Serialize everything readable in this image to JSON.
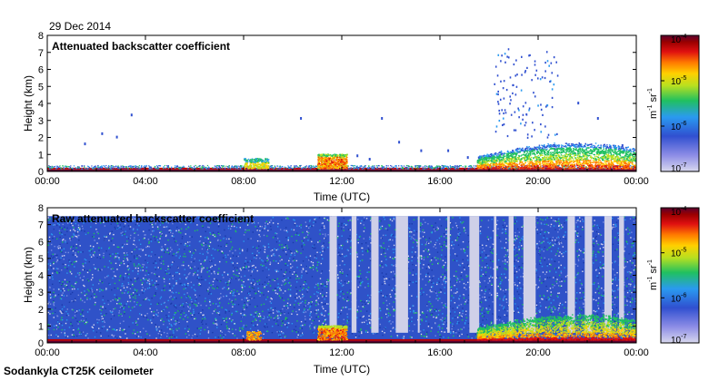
{
  "date": "29 Dec 2014",
  "instrument": "Sodankyla CT25K ceilometer",
  "colors": {
    "colormap": [
      "#d8d8ee",
      "#3050d0",
      "#2a9af0",
      "#20c060",
      "#b8e020",
      "#ffd000",
      "#ff7a00",
      "#e01010",
      "#9b0000",
      "#5a0030"
    ],
    "frame": "#000000",
    "background": "#ffffff"
  },
  "chart_data": [
    {
      "type": "heatmap",
      "title": "Attenuated backscatter coefficient",
      "xlabel": "Time (UTC)",
      "ylabel": "Height (km)",
      "xlim": [
        "00:00",
        "00:00"
      ],
      "ylim": [
        0,
        8
      ],
      "x_ticks": [
        "00:00",
        "04:00",
        "08:00",
        "12:00",
        "16:00",
        "20:00",
        "00:00"
      ],
      "y_ticks": [
        "0",
        "1",
        "2",
        "3",
        "4",
        "5",
        "6",
        "7",
        "8"
      ],
      "colorbar": {
        "label": "m-1 sr-1",
        "scale": "log",
        "range": [
          1e-07,
          0.0001
        ],
        "ticks": [
          "10-7",
          "10-6",
          "10-5",
          "10-4"
        ]
      },
      "features": [
        {
          "t_start": 0.0,
          "t_end": 24.0,
          "top_km": 0.3,
          "level": "high",
          "desc": "surface layer"
        },
        {
          "t_start": 8.0,
          "t_end": 9.0,
          "top_km": 0.8,
          "level": "medium"
        },
        {
          "t_start": 11.0,
          "t_end": 12.2,
          "top_km": 1.1,
          "level": "high"
        },
        {
          "t_start": 17.5,
          "t_end": 24.0,
          "top_km": 1.7,
          "level": "medium"
        }
      ]
    },
    {
      "type": "heatmap",
      "title": "Raw attenuated backscatter coefficient",
      "xlabel": "Time (UTC)",
      "ylabel": "Height (km)",
      "xlim": [
        "00:00",
        "00:00"
      ],
      "ylim": [
        0,
        8
      ],
      "x_ticks": [
        "00:00",
        "04:00",
        "08:00",
        "12:00",
        "16:00",
        "20:00",
        "00:00"
      ],
      "y_ticks": [
        "0",
        "1",
        "2",
        "3",
        "4",
        "5",
        "6",
        "7",
        "8"
      ],
      "colorbar": {
        "label": "m-1 sr-1",
        "scale": "log",
        "range": [
          1e-07,
          0.0001
        ],
        "ticks": [
          "10-7",
          "10-6",
          "10-5",
          "10-4"
        ]
      },
      "features": [
        {
          "t_start": 0.0,
          "t_end": 24.0,
          "top_km": 7.5,
          "level": "noise"
        },
        {
          "t_start": 11.0,
          "t_end": 12.2,
          "top_km": 1.1,
          "level": "high"
        },
        {
          "t_start": 17.5,
          "t_end": 24.0,
          "top_km": 1.7,
          "level": "medium"
        }
      ]
    }
  ]
}
